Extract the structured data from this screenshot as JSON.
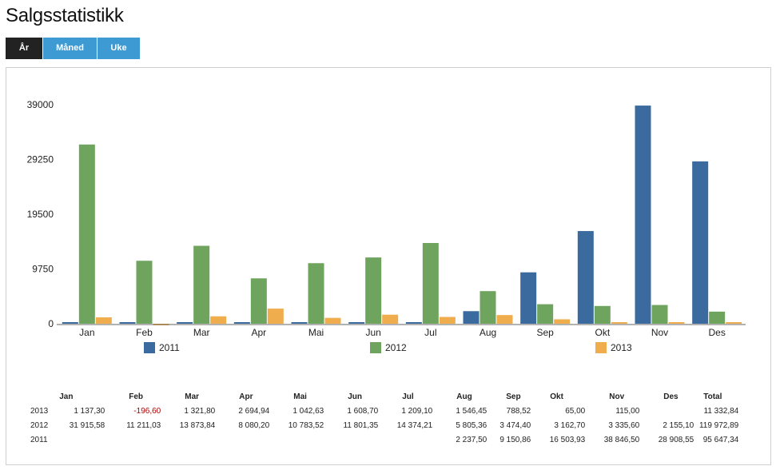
{
  "page": {
    "title": "Salgsstatistikk",
    "tabs": [
      {
        "label": "År",
        "active": true
      },
      {
        "label": "Måned",
        "active": false
      },
      {
        "label": "Uke",
        "active": false
      }
    ]
  },
  "chart_data": {
    "type": "bar",
    "title": "",
    "xlabel": "",
    "ylabel": "",
    "categories": [
      "Jan",
      "Feb",
      "Mar",
      "Apr",
      "Mai",
      "Jun",
      "Jul",
      "Aug",
      "Sep",
      "Okt",
      "Nov",
      "Des"
    ],
    "ylim": [
      0,
      39000
    ],
    "yticks": [
      "0",
      "9750",
      "19500",
      "29250",
      "39000"
    ],
    "yticks_values": [
      0,
      9750,
      19500,
      29250,
      39000
    ],
    "grid": false,
    "legend_position": "bottom",
    "series": [
      {
        "name": "2011",
        "color": "#3b6b9e",
        "values": [
          0,
          0,
          0,
          0,
          0,
          0,
          0,
          2237.5,
          9150.86,
          16503.93,
          38846.5,
          28908.55
        ]
      },
      {
        "name": "2012",
        "color": "#6fa45e",
        "values": [
          31915.58,
          11211.03,
          13873.84,
          8080.2,
          10783.52,
          11801.35,
          14374.21,
          5805.36,
          3474.4,
          3162.7,
          3335.6,
          2155.1
        ]
      },
      {
        "name": "2013",
        "color": "#f0ad4e",
        "values": [
          1137.3,
          -196.6,
          1321.8,
          2694.94,
          1042.63,
          1608.7,
          1209.1,
          1546.45,
          788.52,
          65.0,
          115.0,
          0
        ]
      }
    ]
  },
  "table": {
    "headers": [
      "",
      "Jan",
      "Feb",
      "Mar",
      "Apr",
      "Mai",
      "Jun",
      "Jul",
      "Aug",
      "Sep",
      "Okt",
      "Nov",
      "Des",
      "Total"
    ],
    "rows": [
      {
        "year": "2013",
        "cells": [
          "1 137,30",
          "-196,60",
          "1 321,80",
          "2 694,94",
          "1 042,63",
          "1 608,70",
          "1 209,10",
          "1 546,45",
          "788,52",
          "65,00",
          "115,00",
          "",
          "11 332,84"
        ]
      },
      {
        "year": "2012",
        "cells": [
          "31 915,58",
          "11 211,03",
          "13 873,84",
          "8 080,20",
          "10 783,52",
          "11 801,35",
          "14 374,21",
          "5 805,36",
          "3 474,40",
          "3 162,70",
          "3 335,60",
          "2 155,10",
          "119 972,89"
        ]
      },
      {
        "year": "2011",
        "cells": [
          "",
          "",
          "",
          "",
          "",
          "",
          "",
          "2 237,50",
          "9 150,86",
          "16 503,93",
          "38 846,50",
          "28 908,55",
          "95 647,34"
        ]
      }
    ]
  }
}
